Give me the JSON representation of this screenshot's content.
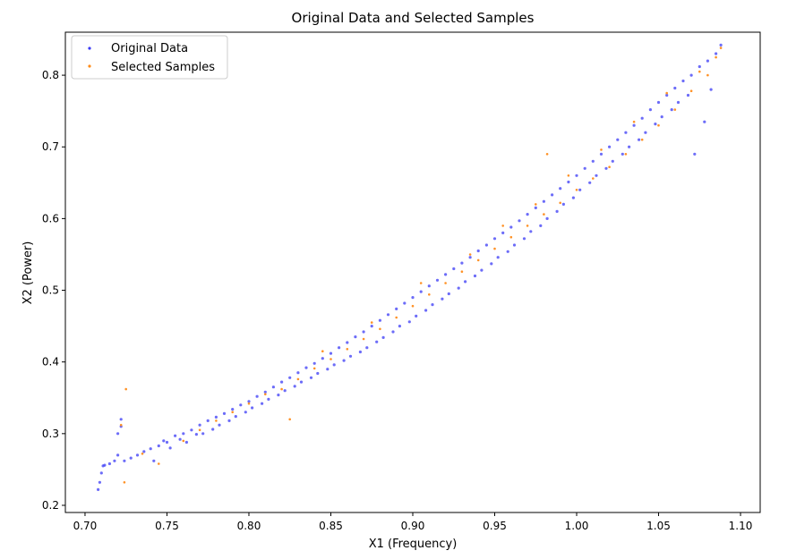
{
  "chart_data": {
    "type": "scatter",
    "title": "Original Data and Selected Samples",
    "xlabel": "X1 (Frequency)",
    "ylabel": "X2 (Power)",
    "xlim": [
      0.688,
      1.112
    ],
    "ylim": [
      0.19,
      0.86
    ],
    "xticks": [
      "0.70",
      "0.75",
      "0.80",
      "0.85",
      "0.90",
      "0.95",
      "1.00",
      "1.05",
      "1.10"
    ],
    "xtick_values": [
      0.7,
      0.75,
      0.8,
      0.85,
      0.9,
      0.95,
      1.0,
      1.05,
      1.1
    ],
    "yticks": [
      "0.2",
      "0.3",
      "0.4",
      "0.5",
      "0.6",
      "0.7",
      "0.8"
    ],
    "ytick_values": [
      0.2,
      0.3,
      0.4,
      0.5,
      0.6,
      0.7,
      0.8
    ],
    "grid": false,
    "legend_position": "top-left",
    "series": [
      {
        "name": "Original Data",
        "color": "#3b3bf5",
        "points": [
          [
            0.708,
            0.222
          ],
          [
            0.709,
            0.232
          ],
          [
            0.71,
            0.245
          ],
          [
            0.711,
            0.255
          ],
          [
            0.712,
            0.256
          ],
          [
            0.715,
            0.258
          ],
          [
            0.718,
            0.262
          ],
          [
            0.72,
            0.27
          ],
          [
            0.72,
            0.3
          ],
          [
            0.722,
            0.31
          ],
          [
            0.722,
            0.32
          ],
          [
            0.724,
            0.262
          ],
          [
            0.728,
            0.266
          ],
          [
            0.732,
            0.27
          ],
          [
            0.736,
            0.275
          ],
          [
            0.74,
            0.279
          ],
          [
            0.742,
            0.262
          ],
          [
            0.745,
            0.283
          ],
          [
            0.748,
            0.29
          ],
          [
            0.75,
            0.288
          ],
          [
            0.752,
            0.28
          ],
          [
            0.755,
            0.297
          ],
          [
            0.758,
            0.292
          ],
          [
            0.76,
            0.3
          ],
          [
            0.762,
            0.288
          ],
          [
            0.765,
            0.305
          ],
          [
            0.768,
            0.299
          ],
          [
            0.77,
            0.312
          ],
          [
            0.772,
            0.3
          ],
          [
            0.775,
            0.318
          ],
          [
            0.778,
            0.306
          ],
          [
            0.78,
            0.323
          ],
          [
            0.782,
            0.312
          ],
          [
            0.785,
            0.328
          ],
          [
            0.788,
            0.318
          ],
          [
            0.79,
            0.334
          ],
          [
            0.792,
            0.324
          ],
          [
            0.795,
            0.34
          ],
          [
            0.798,
            0.33
          ],
          [
            0.8,
            0.345
          ],
          [
            0.802,
            0.336
          ],
          [
            0.805,
            0.352
          ],
          [
            0.808,
            0.342
          ],
          [
            0.81,
            0.358
          ],
          [
            0.812,
            0.348
          ],
          [
            0.815,
            0.365
          ],
          [
            0.818,
            0.354
          ],
          [
            0.82,
            0.372
          ],
          [
            0.822,
            0.36
          ],
          [
            0.825,
            0.378
          ],
          [
            0.828,
            0.366
          ],
          [
            0.83,
            0.385
          ],
          [
            0.832,
            0.372
          ],
          [
            0.835,
            0.392
          ],
          [
            0.838,
            0.378
          ],
          [
            0.84,
            0.398
          ],
          [
            0.842,
            0.384
          ],
          [
            0.845,
            0.405
          ],
          [
            0.848,
            0.39
          ],
          [
            0.85,
            0.412
          ],
          [
            0.852,
            0.396
          ],
          [
            0.855,
            0.42
          ],
          [
            0.858,
            0.402
          ],
          [
            0.86,
            0.427
          ],
          [
            0.862,
            0.408
          ],
          [
            0.865,
            0.435
          ],
          [
            0.868,
            0.414
          ],
          [
            0.87,
            0.442
          ],
          [
            0.872,
            0.42
          ],
          [
            0.875,
            0.45
          ],
          [
            0.878,
            0.428
          ],
          [
            0.88,
            0.458
          ],
          [
            0.882,
            0.434
          ],
          [
            0.885,
            0.466
          ],
          [
            0.888,
            0.442
          ],
          [
            0.89,
            0.474
          ],
          [
            0.892,
            0.45
          ],
          [
            0.895,
            0.482
          ],
          [
            0.898,
            0.456
          ],
          [
            0.9,
            0.49
          ],
          [
            0.902,
            0.464
          ],
          [
            0.905,
            0.498
          ],
          [
            0.908,
            0.472
          ],
          [
            0.91,
            0.506
          ],
          [
            0.912,
            0.48
          ],
          [
            0.915,
            0.514
          ],
          [
            0.918,
            0.488
          ],
          [
            0.92,
            0.522
          ],
          [
            0.922,
            0.495
          ],
          [
            0.925,
            0.53
          ],
          [
            0.928,
            0.503
          ],
          [
            0.93,
            0.538
          ],
          [
            0.932,
            0.512
          ],
          [
            0.935,
            0.546
          ],
          [
            0.938,
            0.52
          ],
          [
            0.94,
            0.555
          ],
          [
            0.942,
            0.528
          ],
          [
            0.945,
            0.563
          ],
          [
            0.948,
            0.537
          ],
          [
            0.95,
            0.572
          ],
          [
            0.952,
            0.546
          ],
          [
            0.955,
            0.58
          ],
          [
            0.958,
            0.554
          ],
          [
            0.96,
            0.588
          ],
          [
            0.962,
            0.563
          ],
          [
            0.965,
            0.597
          ],
          [
            0.968,
            0.572
          ],
          [
            0.97,
            0.606
          ],
          [
            0.972,
            0.582
          ],
          [
            0.975,
            0.615
          ],
          [
            0.978,
            0.59
          ],
          [
            0.98,
            0.624
          ],
          [
            0.982,
            0.6
          ],
          [
            0.985,
            0.633
          ],
          [
            0.988,
            0.61
          ],
          [
            0.99,
            0.642
          ],
          [
            0.992,
            0.62
          ],
          [
            0.995,
            0.651
          ],
          [
            0.998,
            0.629
          ],
          [
            1.0,
            0.66
          ],
          [
            1.002,
            0.64
          ],
          [
            1.005,
            0.67
          ],
          [
            1.008,
            0.65
          ],
          [
            1.01,
            0.68
          ],
          [
            1.012,
            0.66
          ],
          [
            1.015,
            0.69
          ],
          [
            1.018,
            0.67
          ],
          [
            1.02,
            0.7
          ],
          [
            1.022,
            0.68
          ],
          [
            1.025,
            0.71
          ],
          [
            1.028,
            0.69
          ],
          [
            1.03,
            0.72
          ],
          [
            1.032,
            0.7
          ],
          [
            1.035,
            0.73
          ],
          [
            1.038,
            0.71
          ],
          [
            1.04,
            0.74
          ],
          [
            1.042,
            0.72
          ],
          [
            1.045,
            0.752
          ],
          [
            1.048,
            0.732
          ],
          [
            1.05,
            0.762
          ],
          [
            1.052,
            0.742
          ],
          [
            1.055,
            0.772
          ],
          [
            1.058,
            0.752
          ],
          [
            1.06,
            0.782
          ],
          [
            1.062,
            0.762
          ],
          [
            1.065,
            0.792
          ],
          [
            1.068,
            0.772
          ],
          [
            1.07,
            0.8
          ],
          [
            1.072,
            0.69
          ],
          [
            1.075,
            0.812
          ],
          [
            1.078,
            0.735
          ],
          [
            1.08,
            0.82
          ],
          [
            1.082,
            0.78
          ],
          [
            1.085,
            0.83
          ],
          [
            1.088,
            0.842
          ]
        ]
      },
      {
        "name": "Selected Samples",
        "color": "#ff8c1a",
        "points": [
          [
            0.722,
            0.312
          ],
          [
            0.725,
            0.362
          ],
          [
            0.724,
            0.232
          ],
          [
            0.735,
            0.272
          ],
          [
            0.745,
            0.258
          ],
          [
            0.76,
            0.29
          ],
          [
            0.77,
            0.305
          ],
          [
            0.78,
            0.318
          ],
          [
            0.79,
            0.33
          ],
          [
            0.8,
            0.342
          ],
          [
            0.81,
            0.355
          ],
          [
            0.82,
            0.362
          ],
          [
            0.825,
            0.32
          ],
          [
            0.83,
            0.376
          ],
          [
            0.84,
            0.391
          ],
          [
            0.845,
            0.415
          ],
          [
            0.85,
            0.404
          ],
          [
            0.86,
            0.418
          ],
          [
            0.87,
            0.432
          ],
          [
            0.875,
            0.455
          ],
          [
            0.88,
            0.446
          ],
          [
            0.89,
            0.462
          ],
          [
            0.9,
            0.478
          ],
          [
            0.905,
            0.51
          ],
          [
            0.91,
            0.494
          ],
          [
            0.92,
            0.51
          ],
          [
            0.93,
            0.526
          ],
          [
            0.935,
            0.55
          ],
          [
            0.94,
            0.542
          ],
          [
            0.95,
            0.558
          ],
          [
            0.955,
            0.59
          ],
          [
            0.96,
            0.574
          ],
          [
            0.97,
            0.59
          ],
          [
            0.975,
            0.62
          ],
          [
            0.98,
            0.606
          ],
          [
            0.982,
            0.69
          ],
          [
            0.99,
            0.622
          ],
          [
            0.995,
            0.66
          ],
          [
            1.0,
            0.64
          ],
          [
            1.01,
            0.656
          ],
          [
            1.015,
            0.696
          ],
          [
            1.02,
            0.672
          ],
          [
            1.03,
            0.69
          ],
          [
            1.035,
            0.735
          ],
          [
            1.04,
            0.71
          ],
          [
            1.05,
            0.73
          ],
          [
            1.055,
            0.775
          ],
          [
            1.06,
            0.752
          ],
          [
            1.07,
            0.778
          ],
          [
            1.075,
            0.805
          ],
          [
            1.08,
            0.8
          ],
          [
            1.085,
            0.825
          ],
          [
            1.088,
            0.838
          ]
        ]
      }
    ]
  }
}
